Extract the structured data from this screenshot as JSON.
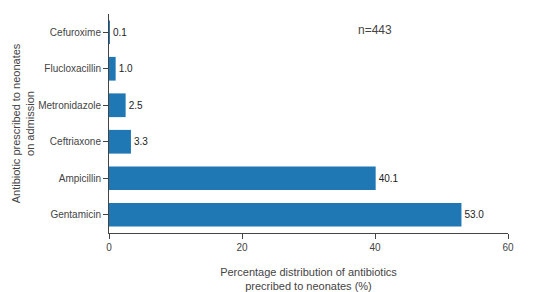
{
  "chart_data": {
    "type": "bar",
    "orientation": "horizontal",
    "categories": [
      "Gentamicin",
      "Ampicillin",
      "Ceftriaxone",
      "Metronidazole",
      "Flucloxacillin",
      "Cefuroxime"
    ],
    "values": [
      53.0,
      40.1,
      3.3,
      2.5,
      1.0,
      0.1
    ],
    "value_labels": [
      "53.0",
      "40.1",
      "3.3",
      "2.5",
      "1.0",
      "0.1"
    ],
    "data_labels": true,
    "xlabel": "Percentage distribution of antibiotics\nprecribed to neonates (%)",
    "ylabel": "Antibiotic prescribed to neonates\non admission",
    "annotation": "n=443",
    "xlim": [
      0,
      60
    ],
    "xticks": [
      0,
      20,
      40,
      60
    ],
    "grid": false
  }
}
